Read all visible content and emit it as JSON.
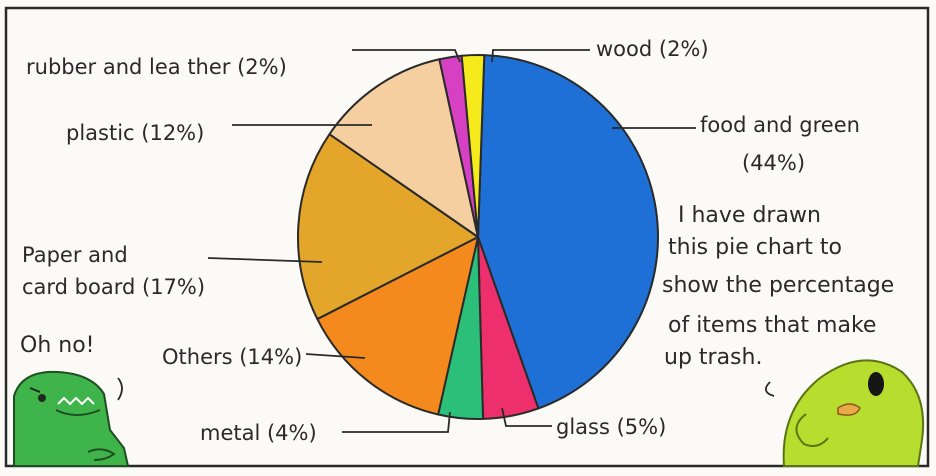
{
  "chart_data": {
    "type": "pie",
    "slices": [
      {
        "label": "food and green",
        "value": 44,
        "color": "#1e6fd6"
      },
      {
        "label": "glass",
        "value": 5,
        "color": "#ee2f6e"
      },
      {
        "label": "metal",
        "value": 4,
        "color": "#2cbf7a"
      },
      {
        "label": "Others",
        "value": 14,
        "color": "#f48a1e"
      },
      {
        "label": "Paper and cardboard",
        "value": 17,
        "color": "#e3a52a"
      },
      {
        "label": "plastic",
        "value": 12,
        "color": "#f6cfa0"
      },
      {
        "label": "rubber and leather",
        "value": 2,
        "color": "#d641c3"
      },
      {
        "label": "wood",
        "value": 2,
        "color": "#f4ea1c"
      }
    ]
  },
  "labels": {
    "rubber": "rubber and lea ther (2%)",
    "wood": "wood (2%)",
    "plastic": "plastic (12%)",
    "food_line1": "food and green",
    "food_line2": "(44%)",
    "paper_line1": "Paper and",
    "paper_line2": "card board (17%)",
    "others": "Others (14%)",
    "metal": "metal (4%)",
    "glass": "glass (5%)"
  },
  "note": {
    "lines": [
      "I have drawn",
      "this pie chart to",
      "show the percentage",
      "of items that make",
      "up trash."
    ]
  },
  "exclamation": "Oh no!"
}
